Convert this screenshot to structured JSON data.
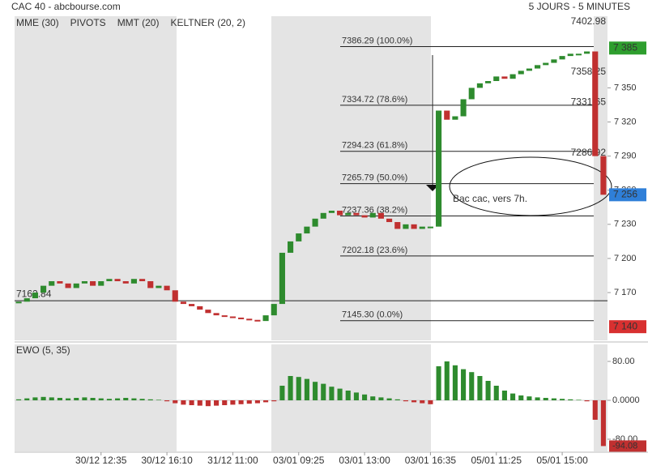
{
  "chart_data": {
    "type": "price",
    "title": "CAC 40 - abcbourse.com",
    "subtitle": "5 JOURS - 5 MINUTES",
    "legend": [
      {
        "name": "MME (30)",
        "color": "#1f6fbf"
      },
      {
        "name": "PIVOTS",
        "color": "#444444"
      },
      {
        "name": "MMT (20)",
        "color": "#1f6fbf"
      },
      {
        "name": "KELTNER (20, 2)",
        "color": "#3a9a3a"
      }
    ],
    "categories": [
      null,
      null,
      null,
      null,
      null,
      null,
      null,
      null,
      null,
      null,
      "30/12 12:35",
      null,
      null,
      null,
      null,
      null,
      null,
      null,
      "30/12 16:10",
      null,
      null,
      null,
      null,
      null,
      null,
      null,
      "31/12 11:00",
      null,
      null,
      null,
      null,
      null,
      null,
      null,
      "03/01 09:25",
      null,
      null,
      null,
      null,
      null,
      null,
      null,
      "03/01 13:00",
      null,
      null,
      null,
      null,
      null,
      null,
      null,
      "03/01 16:35",
      null,
      null,
      null,
      null,
      null,
      null,
      null,
      "05/01 11:25",
      null,
      null,
      null,
      null,
      null,
      null,
      null,
      "05/01 15:00",
      null,
      null,
      null,
      null,
      null
    ],
    "series": [
      {
        "name": "CAC 40",
        "up_color": "#2e8b2e",
        "down_color": "#c03030",
        "values": [
          7162,
          7165,
          7170,
          7176,
          7180,
          7178,
          7174,
          7178,
          7180,
          7176,
          7180,
          7182,
          7180,
          7178,
          7182,
          7180,
          7174,
          7176,
          7172,
          7162,
          7160,
          7158,
          7155,
          7152,
          7150,
          7149,
          7148,
          7147,
          7146,
          7145,
          7150,
          7160,
          7205,
          7215,
          7222,
          7228,
          7235,
          7240,
          7242,
          7238,
          7240,
          7238,
          7236,
          7240,
          7235,
          7232,
          7226,
          7230,
          7226,
          7228,
          7228,
          7330,
          7322,
          7325,
          7340,
          7350,
          7354,
          7356,
          7360,
          7358,
          7362,
          7365,
          7367,
          7370,
          7372,
          7375,
          7378,
          7380,
          7380,
          7382,
          7290,
          7256
        ]
      }
    ],
    "ylim": [
      7128,
      7413
    ],
    "yticks": [
      {
        "value": 7170,
        "label": "7 170"
      },
      {
        "value": 7200,
        "label": "7 200"
      },
      {
        "value": 7230,
        "label": "7 230"
      },
      {
        "value": 7260,
        "label": "7 260"
      },
      {
        "value": 7290,
        "label": "7 290"
      },
      {
        "value": 7320,
        "label": "7 320"
      },
      {
        "value": 7350,
        "label": "7 350"
      }
    ],
    "price_boxes": [
      {
        "value": 7385,
        "label": "7 385",
        "color": "#2e9e2e"
      },
      {
        "value": 7256,
        "label": "7 256",
        "color": "#2f7fd8"
      },
      {
        "value": 7140,
        "label": "7 140",
        "color": "#d83030"
      }
    ],
    "annotations": [
      {
        "value": 7402.98,
        "color": "#2e8b2e"
      },
      {
        "value": 7358.25,
        "color": "#222222"
      },
      {
        "value": 7331.65,
        "color": "#c03030"
      },
      {
        "value": 7286.92,
        "color": "#c03030"
      },
      {
        "value": 7162.84,
        "color": "#222222"
      }
    ],
    "fibonacci": [
      {
        "value": 7386.29,
        "label": "7386.29  (100.0%)"
      },
      {
        "value": 7334.72,
        "label": "7334.72  (78.6%)"
      },
      {
        "value": 7294.23,
        "label": "7294.23  (61.8%)"
      },
      {
        "value": 7265.79,
        "label": "7265.79  (50.0%)"
      },
      {
        "value": 7237.36,
        "label": "7237.36  (38.2%)"
      },
      {
        "value": 7202.18,
        "label": "7202.18  (23.6%)"
      },
      {
        "value": 7145.3,
        "label": "7145.30  (0.0%)"
      }
    ],
    "note": "Bac cac, vers 7h.",
    "indicator": {
      "name": "EWO (5, 35)",
      "up_color": "#2e8b2e",
      "down_color": "#c03030",
      "values": [
        2,
        4,
        6,
        7,
        6,
        5,
        4,
        5,
        6,
        5,
        4,
        3,
        4,
        5,
        4,
        3,
        2,
        1,
        -2,
        -6,
        -9,
        -10,
        -11,
        -12,
        -11,
        -10,
        -9,
        -8,
        -7,
        -6,
        -4,
        -2,
        30,
        50,
        48,
        44,
        38,
        34,
        28,
        24,
        20,
        16,
        12,
        8,
        6,
        4,
        2,
        -2,
        -4,
        -6,
        -8,
        70,
        80,
        72,
        64,
        58,
        50,
        40,
        30,
        20,
        14,
        10,
        8,
        6,
        5,
        4,
        3,
        2,
        1,
        -2,
        -40,
        -94.08
      ],
      "ylim": [
        -105,
        115
      ],
      "yticks": [
        {
          "value": 80,
          "label": "80.00"
        },
        {
          "value": 0,
          "label": "0.0000"
        },
        {
          "value": -80,
          "label": "-80.00"
        }
      ]
    }
  }
}
